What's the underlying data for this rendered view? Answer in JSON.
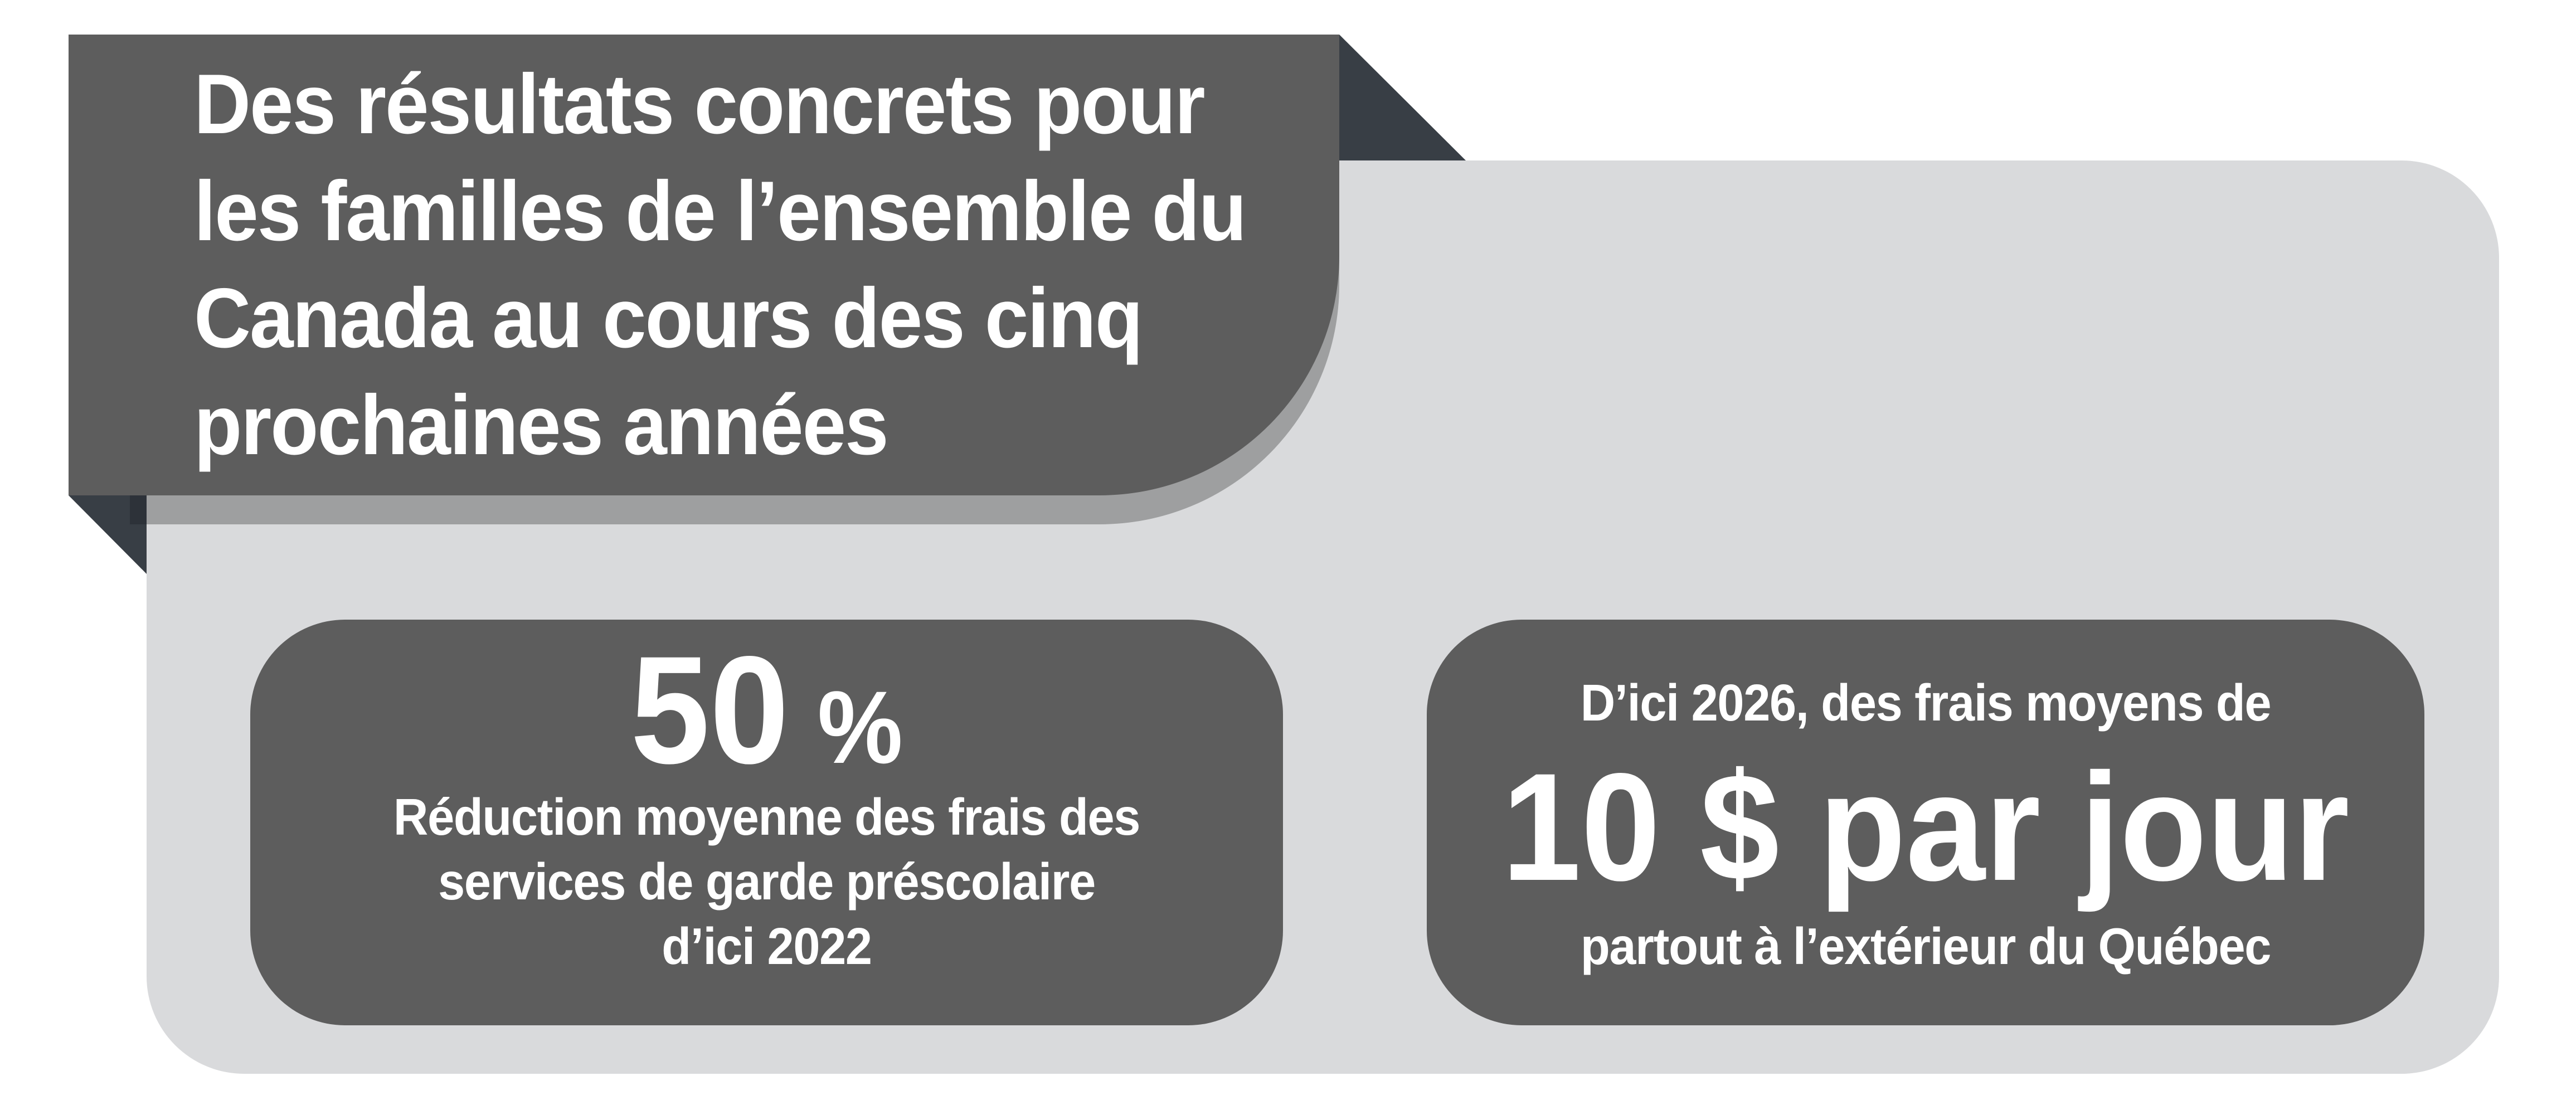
{
  "title_banner": {
    "lines": [
      "Des résultats concrets pour",
      "les familles de l’ensemble du",
      "Canada au cours des cinq",
      "prochaines années"
    ]
  },
  "stats": [
    {
      "value": "50",
      "unit": "%",
      "description_lines": [
        "Réduction moyenne des frais des",
        "services de garde préscolaire",
        "d’ici 2022"
      ]
    },
    {
      "intro": "D’ici 2026, des frais moyens de",
      "value": "10 $ par jour",
      "description": "partout à l’extérieur du Québec"
    }
  ],
  "colors": {
    "banner_background": "#5d5d5d",
    "panel_background": "#d9dadc",
    "fold_triangle": "#383e45",
    "stat_box_background": "#5d5d5d",
    "text": "#ffffff"
  }
}
